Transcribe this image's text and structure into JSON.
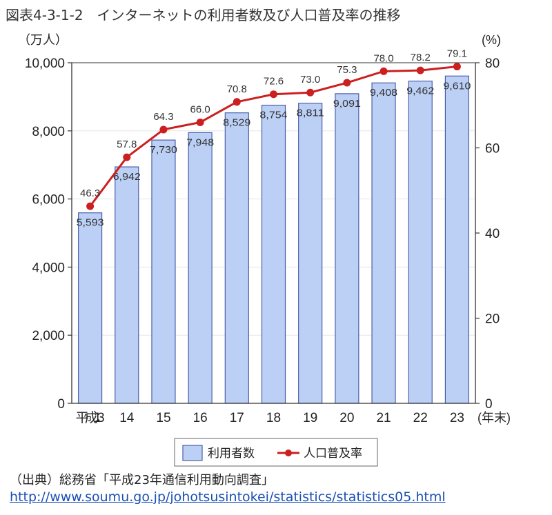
{
  "figure": {
    "title": "図表4-3-1-2　インターネットの利用者数及び人口普及率の推移",
    "source": "（出典）総務省「平成23年通信利用動向調査」",
    "url": "http://www.soumu.go.jp/johotsusintokei/statistics/statistics05.html"
  },
  "colors": {
    "bar_fill": "#bcd0f6",
    "bar_stroke": "#4a5fa8",
    "line": "#cc1f1f",
    "grid": "#e6e6e6"
  },
  "chart_data": {
    "type": "bar",
    "title": "",
    "categories": [
      "平成13",
      "14",
      "15",
      "16",
      "17",
      "18",
      "19",
      "20",
      "21",
      "22",
      "23"
    ],
    "x_unit": "(年末)",
    "y_left": {
      "unit": "（万人）",
      "range": [
        0,
        10000
      ],
      "ticks": [
        "0",
        "2,000",
        "4,000",
        "6,000",
        "8,000",
        "10,000"
      ]
    },
    "y_right": {
      "unit": "(%)",
      "range": [
        0,
        80
      ],
      "ticks": [
        "0",
        "20",
        "40",
        "60",
        "80"
      ]
    },
    "series": [
      {
        "name": "利用者数",
        "type": "bar",
        "axis": "left",
        "values": [
          5593,
          6942,
          7730,
          7948,
          8529,
          8754,
          8811,
          9091,
          9408,
          9462,
          9610
        ],
        "labels": [
          "5,593",
          "6,942",
          "7,730",
          "7,948",
          "8,529",
          "8,754",
          "8,811",
          "9,091",
          "9,408",
          "9,462",
          "9,610"
        ]
      },
      {
        "name": "人口普及率",
        "type": "line",
        "axis": "right",
        "values": [
          46.3,
          57.8,
          64.3,
          66.0,
          70.8,
          72.6,
          73.0,
          75.3,
          78.0,
          78.2,
          79.1
        ],
        "labels": [
          "46.3",
          "57.8",
          "64.3",
          "66.0",
          "70.8",
          "72.6",
          "73.0",
          "75.3",
          "78.0",
          "78.2",
          "79.1"
        ]
      }
    ],
    "legend": "bottom-center",
    "grid": true
  }
}
